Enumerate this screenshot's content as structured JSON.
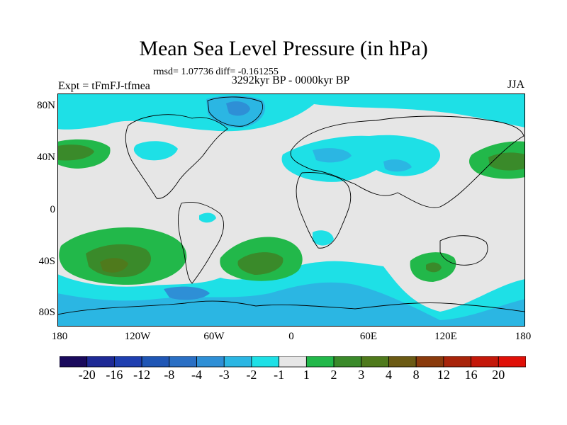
{
  "title": "Mean Sea Level Pressure (in hPa)",
  "stats": "rmsd= 1.07736 diff= -0.161255",
  "period": "3292kyr BP - 0000kyr BP",
  "experiment": "Expt = tFmFJ-tfmea",
  "season": "JJA",
  "lat_labels": [
    "80N",
    "40N",
    "0",
    "40S",
    "80S"
  ],
  "lon_labels": [
    "180",
    "120W",
    "60W",
    "0",
    "60E",
    "120E",
    "180"
  ],
  "colorbar": {
    "labels": [
      "-20",
      "-16",
      "-12",
      "-8",
      "-4",
      "-3",
      "-2",
      "-1",
      "1",
      "2",
      "3",
      "4",
      "8",
      "12",
      "16",
      "20"
    ],
    "colors": [
      "#1a0a5c",
      "#1e2a96",
      "#1f3fb0",
      "#1f56b5",
      "#2a6fc4",
      "#2e8fd6",
      "#2bb6e3",
      "#1ee0e6",
      "#e6e6e6",
      "#22b84a",
      "#3a8a2a",
      "#4f7a1c",
      "#6b5a14",
      "#8a3a0c",
      "#a8240a",
      "#c4180a",
      "#e01008"
    ]
  },
  "legend_colors": {
    "neutral": "#e6e6e6",
    "light_blue": "#1ee0e6",
    "mid_blue": "#2bb6e3",
    "dark_blue": "#2e8fd6",
    "green": "#22b84a",
    "dark_green": "#3a8a2a",
    "olive": "#4f7a1c"
  }
}
